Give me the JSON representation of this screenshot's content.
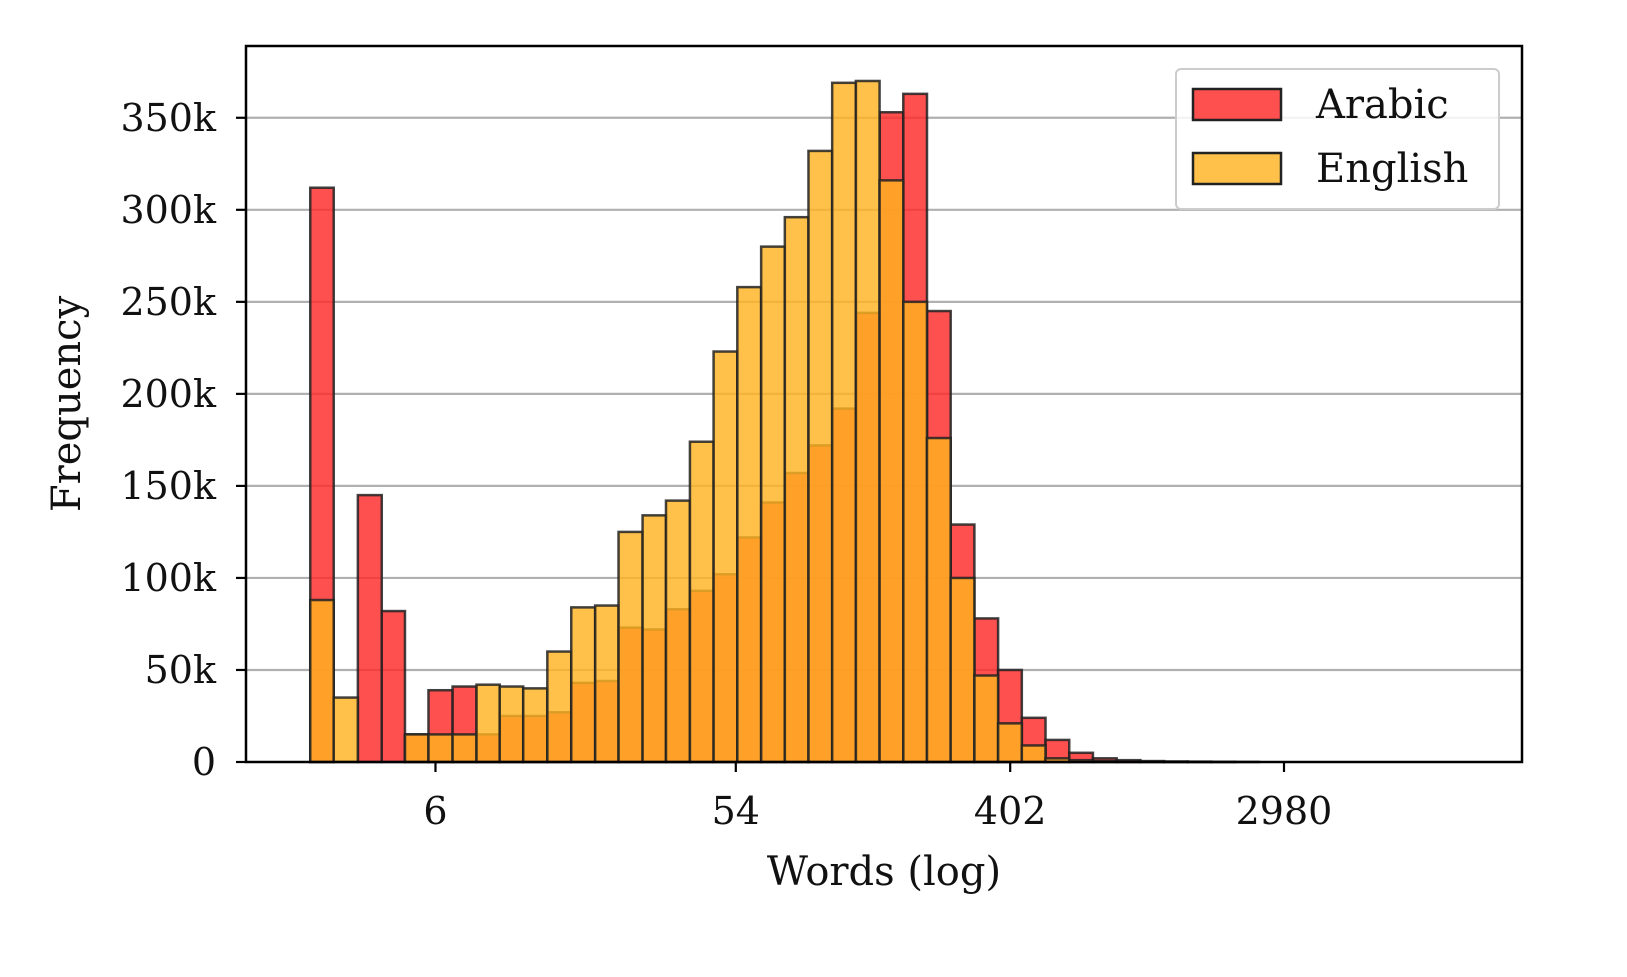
{
  "chart_data": {
    "type": "bar",
    "subtype": "overlaid-histogram",
    "xlabel": "Words (log)",
    "ylabel": "Frequency",
    "x_scale": "log",
    "x_ticks": [
      6,
      54,
      402,
      2980
    ],
    "x_tick_labels": [
      "6",
      "54",
      "402",
      "2980"
    ],
    "xlim": [
      1.5,
      17000
    ],
    "y_ticks": [
      0,
      50000,
      100000,
      150000,
      200000,
      250000,
      300000,
      350000
    ],
    "y_tick_labels": [
      "0",
      "50k",
      "100k",
      "150k",
      "200k",
      "250k",
      "300k",
      "350k"
    ],
    "ylim": [
      0,
      389000
    ],
    "grid": "horizontal",
    "legend_position": "top-right",
    "bin_edges": [
      2.4,
      2.85,
      3.4,
      4.05,
      4.8,
      5.7,
      6.8,
      8.1,
      9.6,
      11.4,
      13.6,
      16.2,
      19.3,
      22.9,
      27.3,
      32.4,
      38.6,
      45.9,
      54.6,
      65.0,
      77.3,
      91.9,
      109.3,
      130.0,
      154.6,
      183.9,
      218.7,
      260.1,
      309.4,
      368.0,
      437.7,
      520.6,
      619.2,
      736.5,
      876.0,
      1041.9,
      1239.2,
      1473.9,
      1753.1,
      2085.1,
      2480.0,
      2949.7,
      3508.4,
      4172.9,
      4963.3,
      5903.4,
      7021.6,
      8351.6,
      9933.5,
      11815.0,
      14053.0
    ],
    "series": [
      {
        "name": "Arabic",
        "color": "#ff2a2a",
        "values": [
          312000,
          0,
          145000,
          82000,
          15000,
          39000,
          41000,
          15000,
          25000,
          25000,
          27000,
          43000,
          44000,
          73000,
          72000,
          83000,
          93000,
          102000,
          122000,
          141000,
          157000,
          172000,
          192000,
          244000,
          353000,
          363000,
          245000,
          129000,
          78000,
          50000,
          24000,
          12000,
          5000,
          2000,
          1000,
          500,
          300,
          200,
          100,
          0,
          0,
          0,
          0,
          0,
          0,
          0,
          0,
          0,
          0,
          0
        ]
      },
      {
        "name": "English",
        "color": "#ffb321",
        "values": [
          88000,
          35000,
          0,
          0,
          15000,
          15000,
          15000,
          42000,
          41000,
          40000,
          60000,
          84000,
          85000,
          125000,
          134000,
          142000,
          174000,
          223000,
          258000,
          280000,
          296000,
          332000,
          369000,
          370000,
          316000,
          250000,
          176000,
          100000,
          47000,
          21000,
          9000,
          2000,
          1000,
          500,
          300,
          200,
          100,
          100,
          50,
          50,
          0,
          0,
          0,
          0,
          0,
          0,
          0,
          0,
          0,
          0
        ]
      }
    ]
  }
}
